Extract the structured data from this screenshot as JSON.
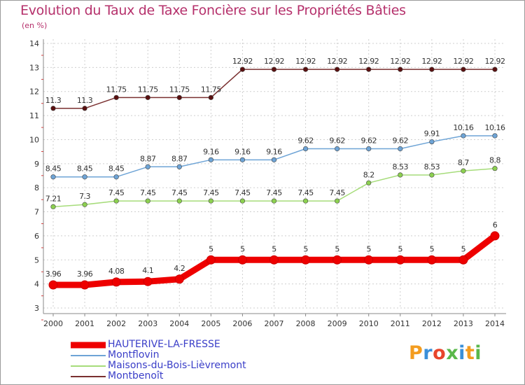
{
  "chart_data": {
    "type": "line",
    "title": "Evolution du Taux de Taxe Foncière sur les Propriétés Bâties",
    "subtitle": "(en %)",
    "xlabel": "",
    "ylabel": "",
    "x": [
      "2000",
      "2001",
      "2002",
      "2003",
      "2004",
      "2005",
      "2006",
      "2007",
      "2008",
      "2009",
      "2010",
      "2011",
      "2012",
      "2013",
      "2014"
    ],
    "ylim": [
      3,
      14
    ],
    "yticks": [
      "3",
      "4",
      "5",
      "6",
      "7",
      "8",
      "9",
      "10",
      "11",
      "12",
      "13",
      "14"
    ],
    "grid": true,
    "legend_position": "bottom-left",
    "series": [
      {
        "name": "HAUTERIVE-LA-FRESSE",
        "color": "#ee0000",
        "marker_color": "#ee0000",
        "values": [
          3.96,
          3.96,
          4.08,
          4.1,
          4.2,
          5,
          5,
          5,
          5,
          5,
          5,
          5,
          5,
          5,
          6
        ],
        "labels": [
          "3.96",
          "3.96",
          "4.08",
          "4.1",
          "4.2",
          "5",
          "5",
          "5",
          "5",
          "5",
          "5",
          "5",
          "5",
          "5",
          "6"
        ]
      },
      {
        "name": "Montflovin",
        "color": "#6ea4d6",
        "marker_color": "#6ea4d6",
        "values": [
          8.45,
          8.45,
          8.45,
          8.87,
          8.87,
          9.16,
          9.16,
          9.16,
          9.62,
          9.62,
          9.62,
          9.62,
          9.91,
          10.16,
          10.16
        ],
        "labels": [
          "8.45",
          "8.45",
          "8.45",
          "8.87",
          "8.87",
          "9.16",
          "9.16",
          "9.16",
          "9.62",
          "9.62",
          "9.62",
          "9.62",
          "9.91",
          "10.16",
          "10.16"
        ]
      },
      {
        "name": "Maisons-du-Bois-Lièvremont",
        "color": "#a6dc7a",
        "marker_color": "#8cd050",
        "values": [
          7.21,
          7.3,
          7.45,
          7.45,
          7.45,
          7.45,
          7.45,
          7.45,
          7.45,
          7.45,
          8.2,
          8.53,
          8.53,
          8.7,
          8.8
        ],
        "labels": [
          "7.21",
          "7.3",
          "7.45",
          "7.45",
          "7.45",
          "7.45",
          "7.45",
          "7.45",
          "7.45",
          "7.45",
          "8.2",
          "8.53",
          "8.53",
          "8.7",
          "8.8"
        ]
      },
      {
        "name": "Montbenoît",
        "color": "#7a3030",
        "marker_color": "#5a1010",
        "values": [
          11.3,
          11.3,
          11.75,
          11.75,
          11.75,
          11.75,
          12.92,
          12.92,
          12.92,
          12.92,
          12.92,
          12.92,
          12.92,
          12.92,
          12.92
        ],
        "labels": [
          "11.3",
          "11.3",
          "11.75",
          "11.75",
          "11.75",
          "11.75",
          "12.92",
          "12.92",
          "12.92",
          "12.92",
          "12.92",
          "12.92",
          "12.92",
          "12.92",
          "12.92"
        ]
      }
    ]
  },
  "logo": {
    "text": "Proxiti",
    "colors": [
      "#f39c1f",
      "#3a8fd9",
      "#e8452c",
      "#5ab84a",
      "#3a8fd9",
      "#f39c1f",
      "#5ab84a"
    ]
  }
}
